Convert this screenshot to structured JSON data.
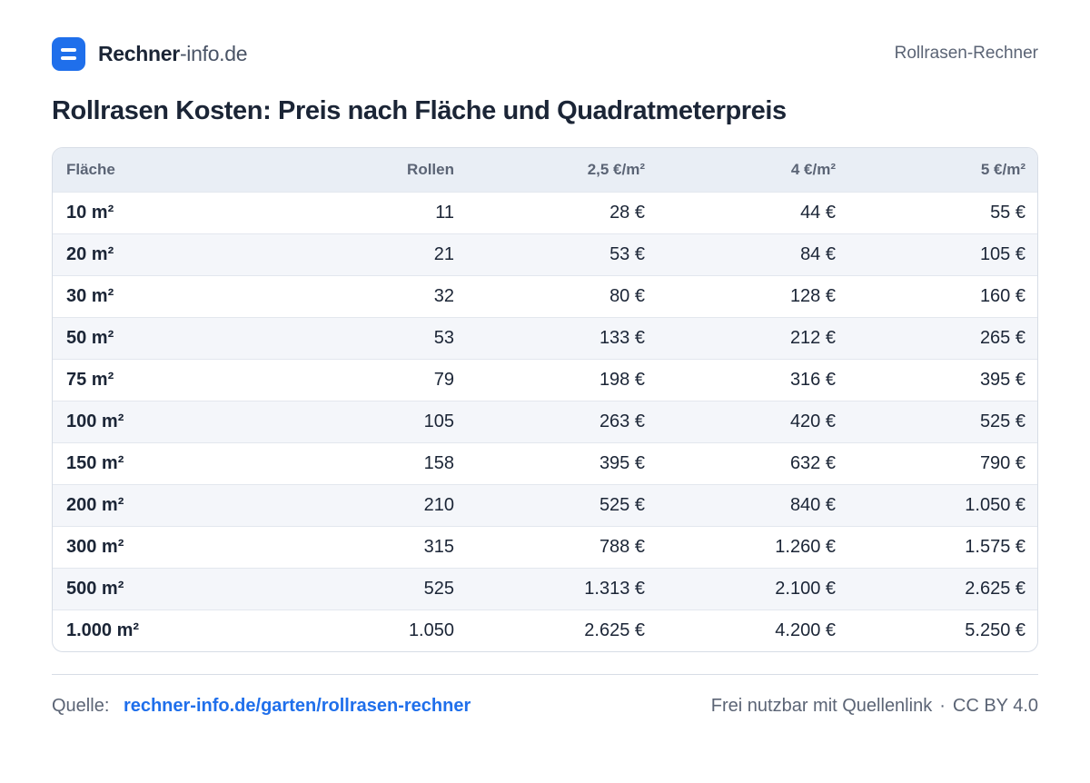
{
  "brand": {
    "name_strong": "Rechner",
    "name_light": "-info.de"
  },
  "header": {
    "right_label": "Rollrasen-Rechner"
  },
  "title": "Rollrasen Kosten: Preis nach Fläche und Quadratmeterpreis",
  "table": {
    "headers": [
      "Fläche",
      "Rollen",
      "2,5 €/m²",
      "4 €/m²",
      "5 €/m²"
    ],
    "rows": [
      [
        "10 m²",
        "11",
        "28 €",
        "44 €",
        "55 €"
      ],
      [
        "20 m²",
        "21",
        "53 €",
        "84 €",
        "105 €"
      ],
      [
        "30 m²",
        "32",
        "80 €",
        "128 €",
        "160 €"
      ],
      [
        "50 m²",
        "53",
        "133 €",
        "212 €",
        "265 €"
      ],
      [
        "75 m²",
        "79",
        "198 €",
        "316 €",
        "395 €"
      ],
      [
        "100 m²",
        "105",
        "263 €",
        "420 €",
        "525 €"
      ],
      [
        "150 m²",
        "158",
        "395 €",
        "632 €",
        "790 €"
      ],
      [
        "200 m²",
        "210",
        "525 €",
        "840 €",
        "1.050 €"
      ],
      [
        "300 m²",
        "315",
        "788 €",
        "1.260 €",
        "1.575 €"
      ],
      [
        "500 m²",
        "525",
        "1.313 €",
        "2.100 €",
        "2.625 €"
      ],
      [
        "1.000 m²",
        "1.050",
        "2.625 €",
        "4.200 €",
        "5.250 €"
      ]
    ]
  },
  "footer": {
    "source_label": "Quelle:",
    "source_link": "rechner-info.de/garten/rollrasen-rechner",
    "usage": "Frei nutzbar mit Quellenlink",
    "separator": "·",
    "license": "CC BY 4.0"
  },
  "colors": {
    "accent": "#1f6feb",
    "header_bg": "#e9eef5",
    "zebra": "#f4f6fa",
    "text": "#1b2536",
    "muted": "#5b6475"
  },
  "icons": {
    "logo": "equals-logo-icon"
  }
}
